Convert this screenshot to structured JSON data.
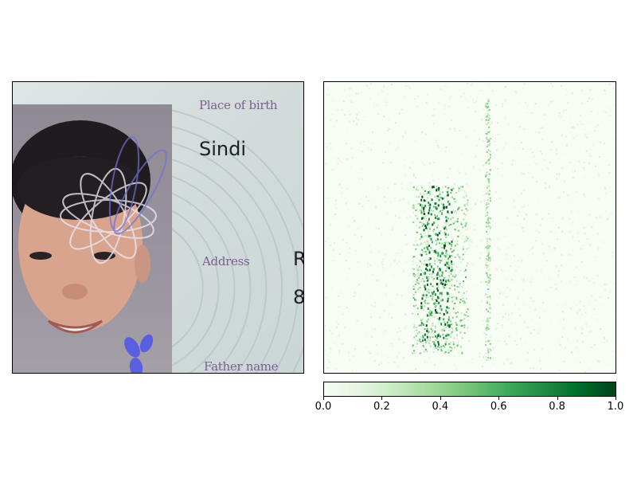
{
  "chart_data": [
    {
      "type": "image",
      "card_text": {
        "place_of_birth_label": "Place of birth",
        "place_of_birth_value": "Sindi",
        "address_label": "Address",
        "address_value_line1": "R",
        "address_value_line2": "8",
        "father_name_label": "Father name"
      }
    },
    {
      "type": "heatmap",
      "colormap": "Greens",
      "value_range": [
        0,
        1
      ],
      "hotspot_region": "face area left of photo edge",
      "colorbar": {
        "orientation": "horizontal",
        "ticks": [
          0.0,
          0.2,
          0.4,
          0.6,
          0.8,
          1.0
        ],
        "tick_labels": [
          "0.0",
          "0.2",
          "0.4",
          "0.6",
          "0.8",
          "1.0"
        ]
      }
    }
  ]
}
